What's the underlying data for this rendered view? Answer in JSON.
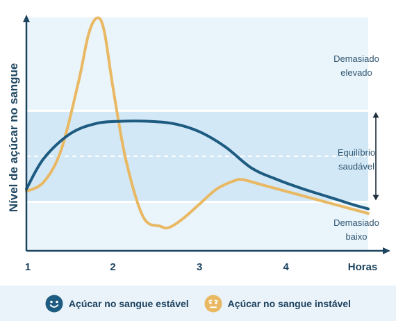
{
  "chart_data": {
    "type": "line",
    "ylabel": "Nível de açúcar no sangue",
    "xlabel": "Horas",
    "xlim": [
      1,
      4.95
    ],
    "ylim": [
      0,
      10
    ],
    "x_ticks": [
      {
        "value": 1,
        "label": "1"
      },
      {
        "value": 2,
        "label": "2"
      },
      {
        "value": 3,
        "label": "3"
      },
      {
        "value": 4,
        "label": "4"
      }
    ],
    "zones": [
      {
        "name": "Demasiado elevado",
        "lines": [
          "Demasiado",
          "elevado"
        ],
        "from": 6.0,
        "to": 10,
        "color": "#eaf4fb"
      },
      {
        "name": "Equilíbrio saudável",
        "lines": [
          "Equilíbrio",
          "saudável"
        ],
        "from": 2.1,
        "to": 6.0,
        "color": "#d3e8f6"
      },
      {
        "name": "Demasiado baixo",
        "lines": [
          "Demasiado",
          "baixo"
        ],
        "from": 0,
        "to": 2.1,
        "color": "#eaf4fb"
      }
    ],
    "midline": 4.05,
    "series": [
      {
        "name": "Açúcar no sangue estável",
        "color": "#1d5b80",
        "x": [
          1.0,
          1.2,
          1.5,
          1.8,
          2.1,
          2.4,
          2.7,
          3.0,
          3.3,
          3.6,
          3.9,
          4.2,
          4.5,
          4.8,
          4.95
        ],
        "y": [
          2.65,
          3.95,
          5.0,
          5.45,
          5.55,
          5.55,
          5.45,
          5.1,
          4.45,
          3.55,
          3.05,
          2.65,
          2.3,
          1.95,
          1.8
        ]
      },
      {
        "name": "Açúcar no sangue instável",
        "color": "#e9b863",
        "x": [
          1.0,
          1.2,
          1.4,
          1.6,
          1.72,
          1.82,
          1.9,
          2.0,
          2.15,
          2.35,
          2.55,
          2.65,
          2.8,
          3.0,
          3.2,
          3.4,
          3.5,
          3.7,
          4.0,
          4.3,
          4.6,
          4.95
        ],
        "y": [
          2.55,
          2.95,
          4.3,
          7.2,
          9.3,
          9.98,
          9.4,
          7.0,
          3.9,
          1.45,
          1.05,
          1.0,
          1.35,
          2.0,
          2.65,
          3.0,
          3.05,
          2.85,
          2.55,
          2.25,
          1.95,
          1.6
        ]
      }
    ]
  },
  "legend": {
    "stable_label": "Açúcar no sangue estável",
    "stable_icon": "happy-face-icon",
    "unstable_label": "Açúcar no sangue instável",
    "unstable_icon": "worried-face-icon"
  }
}
